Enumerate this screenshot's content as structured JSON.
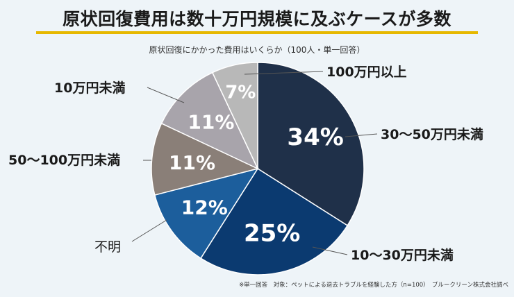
{
  "title": "原状回復費用は数十万円規模に及ぶケースが多数",
  "subtitle": "原状回復にかかった費用はいくらか（100人・単一回答）",
  "footnote": "※単一回答　対象：ペットによる退去トラブルを経験した方（n=100）　ブルークリーン株式会社調べ",
  "chart_data": {
    "type": "pie",
    "categories": [
      "30〜50万円未満",
      "10〜30万円未満",
      "不明",
      "50〜100万円未満",
      "10万円未満",
      "100万円以上"
    ],
    "values": [
      34,
      25,
      12,
      11,
      11,
      7
    ],
    "value_labels": [
      "34%",
      "25%",
      "12%",
      "11%",
      "11%",
      "7%"
    ],
    "colors": [
      "#1f3049",
      "#0b3a70",
      "#1c5e9c",
      "#8a7f78",
      "#a8a4ab",
      "#b8b8b8"
    ],
    "start_angle_deg": 0,
    "direction": "clockwise"
  }
}
